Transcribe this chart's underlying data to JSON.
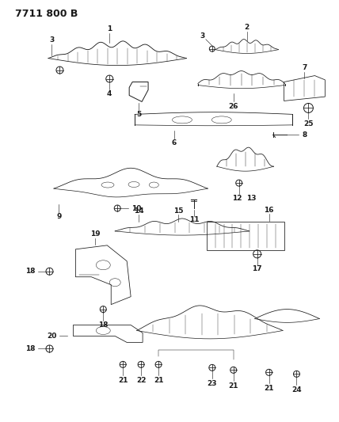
{
  "title": "7711 800 B",
  "bg_color": "#ffffff",
  "line_color": "#1a1a1a",
  "title_fontsize": 9,
  "label_fontsize": 6.5,
  "fig_width": 4.28,
  "fig_height": 5.33,
  "dpi": 100
}
